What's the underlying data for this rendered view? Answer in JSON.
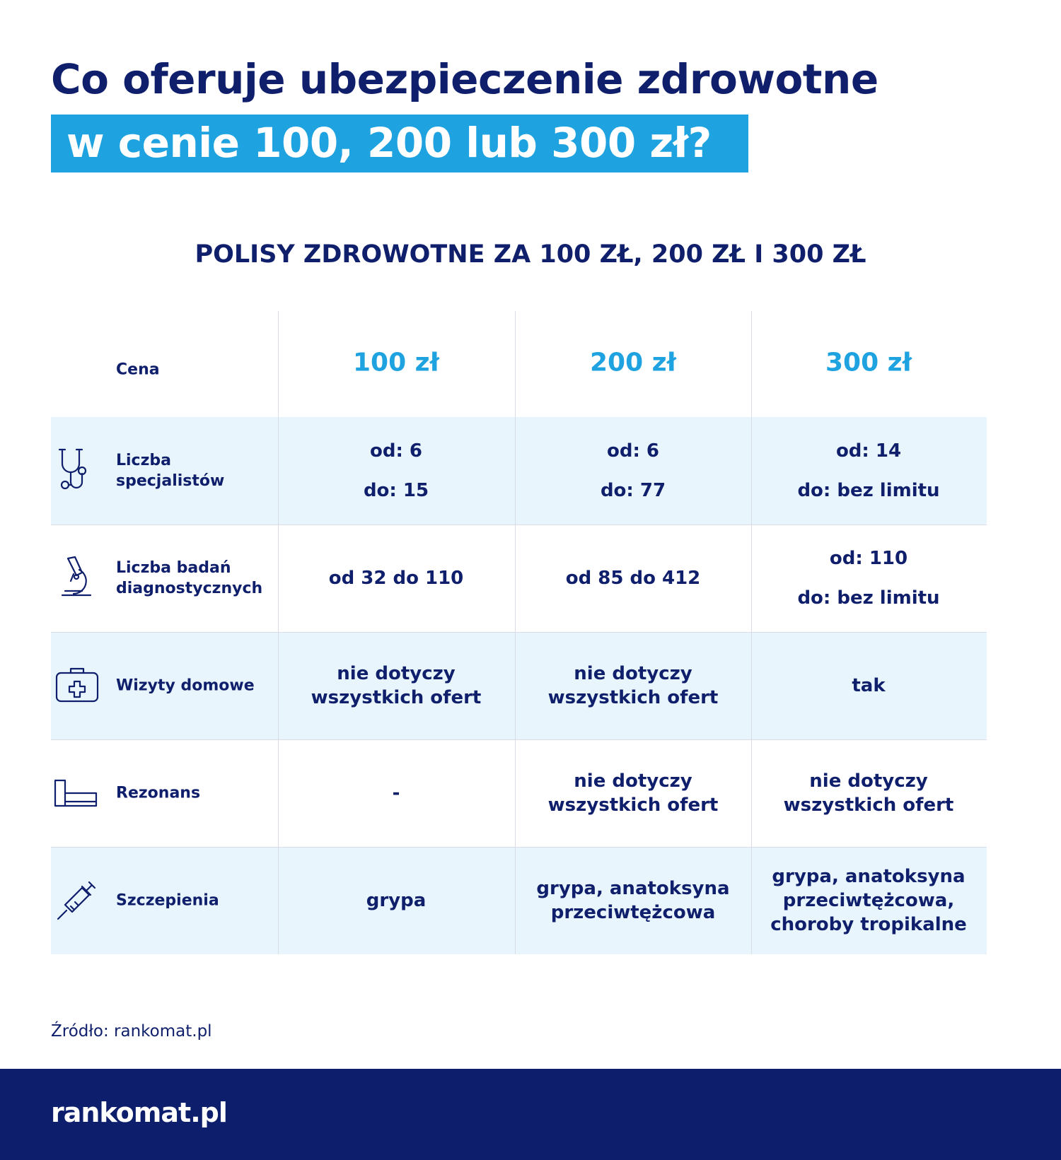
{
  "header": {
    "title_line1": "Co oferuje ubezpieczenie zdrowotne",
    "title_line2": "w cenie 100, 200 lub 300 zł?"
  },
  "table": {
    "title": "POLISY ZDROWOTNE ZA 100 ZŁ, 200 ZŁ I 300 ZŁ",
    "header": [
      "Cena",
      "100 zł",
      "200 zł",
      "300 zł"
    ],
    "rows": [
      {
        "label": "Liczba specjalistów",
        "cells": [
          [
            "od: 6",
            "do: 15"
          ],
          [
            "od: 6",
            "do: 77"
          ],
          [
            "od: 14",
            "do: bez limitu"
          ]
        ]
      },
      {
        "label": "Liczba badań diagnostycznych",
        "cells": [
          [
            "od 32 do 110"
          ],
          [
            "od 85 do 412"
          ],
          [
            "od: 110",
            "do: bez limitu"
          ]
        ]
      },
      {
        "label": "Wizyty domowe",
        "cells": [
          [
            "nie dotyczy wszystkich ofert"
          ],
          [
            "nie dotyczy wszystkich ofert"
          ],
          [
            "tak"
          ]
        ]
      },
      {
        "label": "Rezonans",
        "cells": [
          [
            "-"
          ],
          [
            "nie dotyczy wszystkich ofert"
          ],
          [
            "nie dotyczy wszystkich ofert"
          ]
        ]
      },
      {
        "label": "Szczepienia",
        "cells": [
          [
            "grypa"
          ],
          [
            "grypa, anatoksyna przeciwtężcowa"
          ],
          [
            "grypa, anatoksyna przeciwtężcowa, choroby tropikalne"
          ]
        ]
      }
    ]
  },
  "source": "Źródło: rankomat.pl",
  "footer": {
    "logo": "rankomat.pl"
  }
}
